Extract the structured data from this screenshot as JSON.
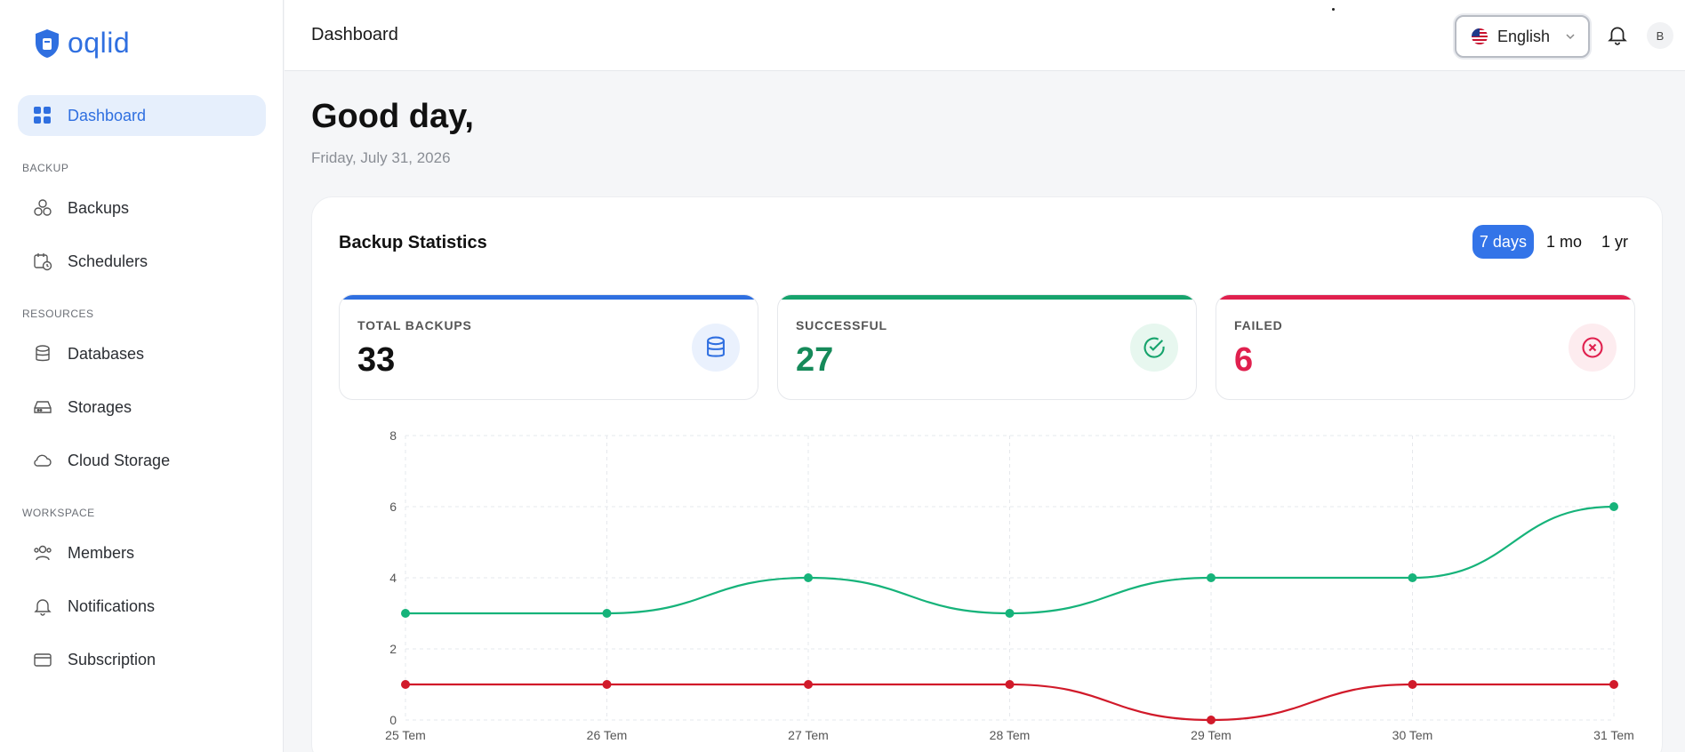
{
  "app": {
    "name": "oqlid"
  },
  "sidebar": {
    "active": {
      "label": "Dashboard"
    },
    "sections": [
      {
        "title": "BACKUP",
        "items": [
          {
            "label": "Backups"
          },
          {
            "label": "Schedulers"
          }
        ]
      },
      {
        "title": "RESOURCES",
        "items": [
          {
            "label": "Databases"
          },
          {
            "label": "Storages"
          },
          {
            "label": "Cloud Storage"
          }
        ]
      },
      {
        "title": "WORKSPACE",
        "items": [
          {
            "label": "Members"
          },
          {
            "label": "Notifications"
          },
          {
            "label": "Subscription"
          }
        ]
      }
    ]
  },
  "header": {
    "title": "Dashboard",
    "language": "English",
    "avatar_initial": "B"
  },
  "main": {
    "greeting": "Good day,",
    "date": "Friday, July 31, 2026"
  },
  "stats_card": {
    "title": "Backup Statistics",
    "ranges": [
      {
        "label": "7 days",
        "active": true
      },
      {
        "label": "1 mo"
      },
      {
        "label": "1 yr"
      }
    ],
    "cards": [
      {
        "label": "TOTAL BACKUPS",
        "value": "33",
        "color": "#2f6fe0",
        "icon": "database-icon"
      },
      {
        "label": "SUCCESSFUL",
        "value": "27",
        "color": "#16a36c",
        "icon": "check-circle-icon"
      },
      {
        "label": "FAILED",
        "value": "6",
        "color": "#e0204e",
        "icon": "x-circle-icon"
      }
    ]
  },
  "chart_data": {
    "type": "line",
    "x": [
      "25 Tem",
      "26 Tem",
      "27 Tem",
      "28 Tem",
      "29 Tem",
      "30 Tem",
      "31 Tem"
    ],
    "series": [
      {
        "values": [
          3,
          3,
          4,
          3,
          4,
          4,
          6
        ],
        "color": "#16b37a"
      },
      {
        "values": [
          1,
          1,
          1,
          1,
          0,
          1,
          1
        ],
        "color": "#d11a2a"
      }
    ],
    "ylim": [
      0,
      8
    ],
    "yticks": [
      0,
      2,
      4,
      6,
      8
    ],
    "grid": true
  }
}
